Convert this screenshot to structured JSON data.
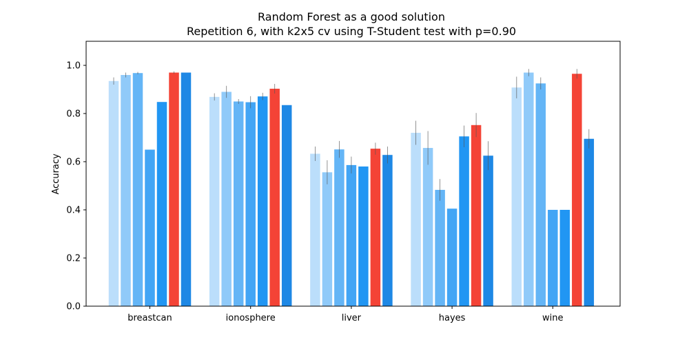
{
  "chart_data": {
    "type": "bar",
    "title": "Random Forest as a good solution",
    "subtitle": "Repetition 6, with k2x5 cv using T-Student test with p=0.90",
    "xlabel": "",
    "ylabel": "Accuracy",
    "ylim": [
      0,
      1.1
    ],
    "yticks": [
      "0.0",
      "0.2",
      "0.4",
      "0.6",
      "0.8",
      "1.0"
    ],
    "categories": [
      "breastcan",
      "ionosphere",
      "liver",
      "hayes",
      "wine"
    ],
    "grid": false,
    "legend": "none",
    "highlight_series": 6,
    "series": [
      {
        "color": "#bbdefb",
        "values": [
          0.935,
          0.869,
          0.633,
          0.72,
          0.908
        ],
        "errors": [
          0.015,
          0.015,
          0.03,
          0.05,
          0.045
        ]
      },
      {
        "color": "#90caf9",
        "values": [
          0.96,
          0.89,
          0.556,
          0.657,
          0.97
        ],
        "errors": [
          0.01,
          0.025,
          0.05,
          0.07,
          0.015
        ]
      },
      {
        "color": "#64b5f6",
        "values": [
          0.968,
          0.85,
          0.651,
          0.483,
          0.925
        ],
        "errors": [
          0.005,
          0.01,
          0.035,
          0.045,
          0.025
        ]
      },
      {
        "color": "#42a5f5",
        "values": [
          0.65,
          0.847,
          0.586,
          0.405,
          0.4
        ],
        "errors": [
          0.0,
          0.025,
          0.035,
          0.0,
          0.0
        ]
      },
      {
        "color": "#2196f3",
        "values": [
          0.848,
          0.871,
          0.58,
          0.705,
          0.4
        ],
        "errors": [
          0.0,
          0.015,
          0.0,
          0.045,
          0.0
        ]
      },
      {
        "color": "#f44336",
        "values": [
          0.97,
          0.903,
          0.654,
          0.752,
          0.965
        ],
        "errors": [
          0.005,
          0.02,
          0.025,
          0.05,
          0.02
        ]
      },
      {
        "color": "#1e88e5",
        "values": [
          0.97,
          0.835,
          0.628,
          0.625,
          0.695
        ],
        "errors": [
          0.0,
          0.0,
          0.035,
          0.06,
          0.04
        ]
      }
    ]
  }
}
